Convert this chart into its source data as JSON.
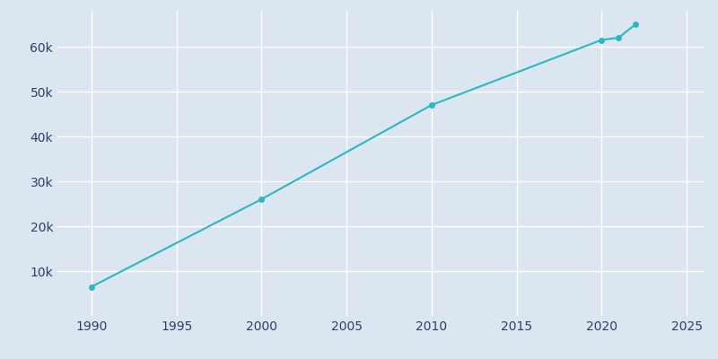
{
  "years": [
    1990,
    2000,
    2010,
    2020,
    2021,
    2022
  ],
  "population": [
    6500,
    26000,
    47000,
    61500,
    62000,
    65000
  ],
  "line_color": "#2AB8C4",
  "marker_color": "#2AB8C4",
  "bg_color": "#dce6f0",
  "plot_bg_color": "#dce6f0",
  "grid_color": "#FFFFFF",
  "text_color": "#2C3E6B",
  "xlim": [
    1988,
    2026
  ],
  "ylim": [
    0,
    68000
  ],
  "xticks": [
    1990,
    1995,
    2000,
    2005,
    2010,
    2015,
    2020,
    2025
  ],
  "yticks": [
    10000,
    20000,
    30000,
    40000,
    50000,
    60000
  ],
  "marker_size": 4,
  "line_width": 1.5
}
